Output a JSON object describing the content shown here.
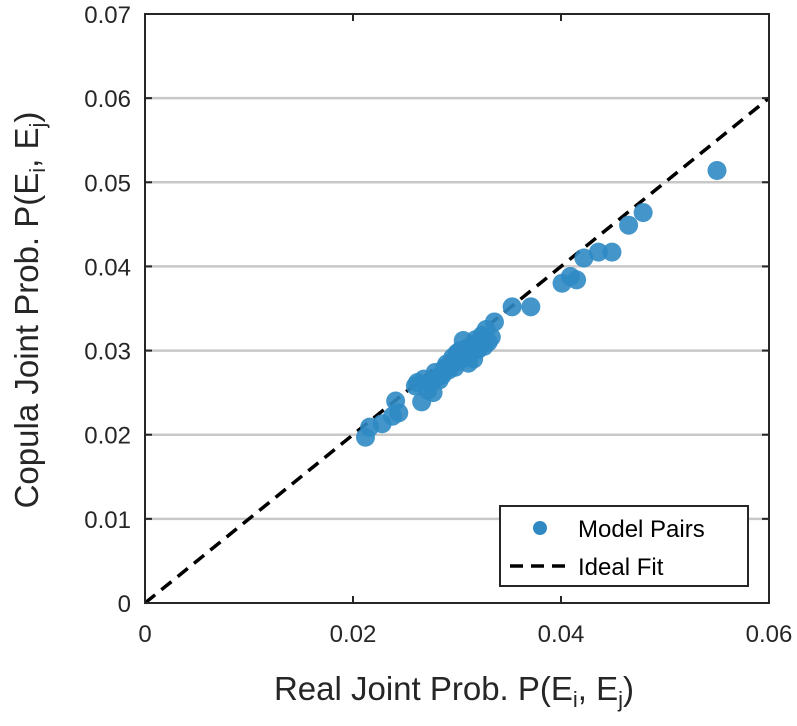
{
  "chart_data": {
    "type": "scatter",
    "xlabel": {
      "main": "Real Joint Prob. P(E",
      "sub_i": "i",
      "sep": ", E",
      "sub_j": "j",
      "close": ")"
    },
    "ylabel": {
      "main": "Copula Joint Prob. P(E",
      "sub_i": "i",
      "sep": ", E",
      "sub_j": "j",
      "close": ")"
    },
    "xlim": [
      0,
      0.06
    ],
    "ylim": [
      0,
      0.07
    ],
    "xticks": [
      0,
      0.02,
      0.04,
      0.06
    ],
    "xtick_labels": [
      "0",
      "0.02",
      "0.04",
      "0.06"
    ],
    "yticks": [
      0,
      0.01,
      0.02,
      0.03,
      0.04,
      0.05,
      0.06,
      0.07
    ],
    "ytick_labels": [
      "0",
      "0.01",
      "0.02",
      "0.03",
      "0.04",
      "0.05",
      "0.06",
      "0.07"
    ],
    "grid": "horizontal",
    "legend_position": "bottom-right",
    "colors": {
      "points": "#2f8ac4",
      "ideal": "#000000",
      "grid": "#c8c8c8",
      "axis": "#262626"
    },
    "series": [
      {
        "name": "Model Pairs",
        "kind": "scatter",
        "x": [
          0.0212,
          0.0216,
          0.0228,
          0.0238,
          0.0241,
          0.0244,
          0.026,
          0.0262,
          0.0266,
          0.0268,
          0.0272,
          0.0275,
          0.0277,
          0.0279,
          0.0281,
          0.0283,
          0.0286,
          0.0288,
          0.029,
          0.0292,
          0.0294,
          0.0296,
          0.0298,
          0.03,
          0.0301,
          0.0303,
          0.0305,
          0.0306,
          0.0308,
          0.031,
          0.0311,
          0.0313,
          0.0315,
          0.0316,
          0.0318,
          0.032,
          0.0322,
          0.0324,
          0.0326,
          0.0328,
          0.033,
          0.0333,
          0.0336,
          0.0353,
          0.0371,
          0.0401,
          0.0409,
          0.0415,
          0.0422,
          0.0436,
          0.0449,
          0.0465,
          0.0479,
          0.055
        ],
        "y": [
          0.0197,
          0.0209,
          0.0213,
          0.0222,
          0.024,
          0.0226,
          0.0258,
          0.0262,
          0.0239,
          0.0266,
          0.0253,
          0.0262,
          0.025,
          0.0274,
          0.0268,
          0.0265,
          0.0271,
          0.0279,
          0.0284,
          0.0277,
          0.0283,
          0.0292,
          0.028,
          0.0297,
          0.0287,
          0.03,
          0.0293,
          0.0312,
          0.0291,
          0.0303,
          0.0285,
          0.0297,
          0.0307,
          0.029,
          0.0313,
          0.0301,
          0.0308,
          0.0318,
          0.0305,
          0.0325,
          0.031,
          0.0316,
          0.0334,
          0.0352,
          0.0352,
          0.038,
          0.0388,
          0.0384,
          0.041,
          0.0417,
          0.0417,
          0.0449,
          0.0464,
          0.0514
        ]
      },
      {
        "name": "Ideal Fit",
        "kind": "line",
        "x": [
          0,
          0.06
        ],
        "y": [
          0,
          0.06
        ]
      }
    ]
  }
}
